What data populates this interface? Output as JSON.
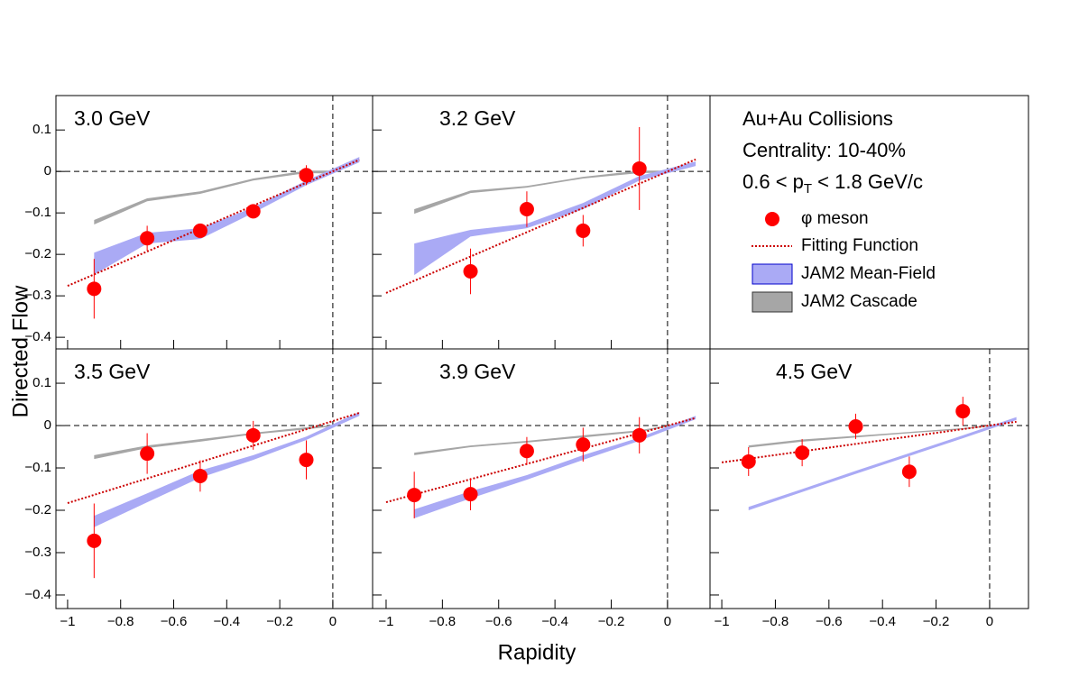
{
  "xlabel": "Rapidity",
  "ylabel": "Directed Flow",
  "annotations": [
    "Au+Au Collisions",
    "Centrality: 10-40%",
    {
      "pre": "0.6 < p",
      "sub": "T",
      "post": " < 1.8  GeV/c"
    }
  ],
  "chart_data": [
    {
      "type": "scatter",
      "title": "3.0 GeV",
      "xlim": [
        -1.044,
        0.15
      ],
      "ylim": [
        -0.428,
        0.183
      ],
      "xticks": [
        -1,
        -0.8,
        -0.6,
        -0.4,
        -0.2,
        0
      ],
      "yticks": [
        0.1,
        0,
        {
          "value": -0.1,
          "label": "−0.1"
        },
        {
          "value": -0.2,
          "label": "−0.2"
        },
        {
          "value": -0.3,
          "label": "−0.3"
        },
        {
          "value": -0.4,
          "label": "−0.4"
        }
      ],
      "series": [
        {
          "name": "φ meson",
          "color": "#ff0000",
          "x": [
            -0.9,
            -0.7,
            -0.5,
            -0.3,
            -0.1
          ],
          "values": [
            -0.283,
            -0.161,
            -0.143,
            -0.096,
            -0.009
          ],
          "errors": [
            0.072,
            0.03,
            0.01,
            0.01,
            0.024
          ]
        },
        {
          "name": "Fitting Function",
          "color": "#cc0000",
          "x": [
            -1,
            0.1
          ],
          "values": [
            -0.276,
            0.028
          ]
        },
        {
          "name": "JAM2 Mean-Field",
          "color": "#aaaaf5",
          "x": [
            -0.9,
            -0.7,
            -0.5,
            -0.3,
            -0.1,
            0.1
          ],
          "low": [
            -0.249,
            -0.174,
            -0.163,
            -0.1,
            -0.033,
            0.022
          ],
          "high": [
            -0.196,
            -0.148,
            -0.137,
            -0.087,
            -0.022,
            0.035
          ]
        },
        {
          "name": "JAM2 Cascade",
          "color": "#a6a6a6",
          "x": [
            -0.9,
            -0.7,
            -0.5,
            -0.3,
            -0.1,
            0
          ],
          "low": [
            -0.128,
            -0.072,
            -0.054,
            -0.022,
            -0.004,
            -0.005
          ],
          "high": [
            -0.117,
            -0.065,
            -0.048,
            -0.017,
            0.002,
            0.002
          ]
        }
      ]
    },
    {
      "type": "scatter",
      "title": "3.2 GeV",
      "xlim": [
        -1.048,
        0.151
      ],
      "ylim": [
        -0.428,
        0.183
      ],
      "xticks": [
        -1,
        -0.8,
        -0.6,
        -0.4,
        -0.2,
        0
      ],
      "yticks": [
        0.1,
        0,
        -0.1,
        -0.2,
        -0.3,
        -0.4
      ],
      "series": [
        {
          "color": "#ff0000",
          "x": [
            -0.7,
            -0.5,
            -0.3,
            -0.1
          ],
          "values": [
            -0.241,
            -0.091,
            -0.143,
            0.007
          ],
          "errors": [
            0.055,
            0.043,
            0.038,
            0.1
          ]
        },
        {
          "color": "#cc0000",
          "x": [
            -1,
            0.1
          ],
          "values": [
            -0.293,
            0.029
          ]
        },
        {
          "color": "#aaaaf5",
          "x": [
            -0.9,
            -0.7,
            -0.5,
            -0.3,
            -0.1,
            0.1
          ],
          "low": [
            -0.25,
            -0.157,
            -0.137,
            -0.091,
            -0.022,
            0.013
          ],
          "high": [
            -0.174,
            -0.141,
            -0.126,
            -0.076,
            -0.011,
            0.024
          ]
        },
        {
          "color": "#a6a6a6",
          "x": [
            -0.9,
            -0.7,
            -0.5,
            -0.3,
            -0.1,
            0
          ],
          "low": [
            -0.102,
            -0.052,
            -0.039,
            -0.017,
            -0.004,
            -0.003
          ],
          "high": [
            -0.091,
            -0.046,
            -0.035,
            -0.013,
            0.002,
            0.002
          ]
        }
      ]
    },
    {
      "type": "scatter",
      "title": "3.5 GeV",
      "xlim": [
        -1.044,
        0.15
      ],
      "ylim": [
        -0.432,
        0.181
      ],
      "xticks": [
        {
          "value": -1,
          "label": "−1"
        },
        {
          "value": -0.8,
          "label": "−0.8"
        },
        {
          "value": -0.6,
          "label": "−0.6"
        },
        {
          "value": -0.4,
          "label": "−0.4"
        },
        {
          "value": -0.2,
          "label": "−0.2"
        },
        0
      ],
      "yticks": [
        0.1,
        0,
        {
          "value": -0.1,
          "label": "−0.1"
        },
        {
          "value": -0.2,
          "label": "−0.2"
        },
        {
          "value": -0.3,
          "label": "−0.3"
        },
        {
          "value": -0.4,
          "label": "−0.4"
        }
      ],
      "series": [
        {
          "color": "#ff0000",
          "x": [
            -0.9,
            -0.7,
            -0.5,
            -0.3,
            -0.1
          ],
          "values": [
            -0.272,
            -0.066,
            -0.119,
            -0.023,
            -0.081
          ],
          "errors": [
            0.088,
            0.048,
            0.037,
            0.034,
            0.046
          ]
        },
        {
          "color": "#cc0000",
          "x": [
            -1,
            0.1
          ],
          "values": [
            -0.183,
            0.03
          ]
        },
        {
          "color": "#aaaaf5",
          "x": [
            -0.9,
            -0.7,
            -0.5,
            -0.3,
            -0.1,
            0.1
          ],
          "low": [
            -0.24,
            -0.181,
            -0.123,
            -0.081,
            -0.034,
            0.023
          ],
          "high": [
            -0.213,
            -0.16,
            -0.106,
            -0.07,
            -0.026,
            0.032
          ]
        },
        {
          "color": "#a6a6a6",
          "x": [
            -0.9,
            -0.7,
            -0.5,
            -0.3,
            -0.1,
            0
          ],
          "low": [
            -0.079,
            -0.053,
            -0.038,
            -0.021,
            -0.009,
            -0.002
          ],
          "high": [
            -0.07,
            -0.047,
            -0.032,
            -0.017,
            -0.004,
            0.001
          ]
        }
      ]
    },
    {
      "type": "scatter",
      "title": "3.9 GeV",
      "xlim": [
        -1.048,
        0.151
      ],
      "ylim": [
        -0.432,
        0.181
      ],
      "xticks": [
        {
          "value": -1,
          "label": "−1"
        },
        {
          "value": -0.8,
          "label": "−0.8"
        },
        {
          "value": -0.6,
          "label": "−0.6"
        },
        {
          "value": -0.4,
          "label": "−0.4"
        },
        {
          "value": -0.2,
          "label": "−0.2"
        },
        0
      ],
      "yticks": [
        0.1,
        0,
        -0.1,
        -0.2,
        -0.3,
        -0.4
      ],
      "series": [
        {
          "color": "#ff0000",
          "x": [
            -0.9,
            -0.7,
            -0.5,
            -0.3,
            -0.1
          ],
          "values": [
            -0.164,
            -0.162,
            -0.06,
            -0.045,
            -0.023
          ],
          "errors": [
            0.055,
            0.038,
            0.033,
            0.04,
            0.043
          ]
        },
        {
          "color": "#cc0000",
          "x": [
            -1,
            0.1
          ],
          "values": [
            -0.181,
            0.018
          ]
        },
        {
          "color": "#aaaaf5",
          "x": [
            -0.9,
            -0.7,
            -0.5,
            -0.3,
            -0.1,
            0.1
          ],
          "low": [
            -0.219,
            -0.172,
            -0.128,
            -0.081,
            -0.036,
            0.015
          ],
          "high": [
            -0.198,
            -0.155,
            -0.117,
            -0.07,
            -0.028,
            0.023
          ]
        },
        {
          "color": "#a6a6a6",
          "x": [
            -0.9,
            -0.7,
            -0.5,
            -0.3,
            -0.1,
            0
          ],
          "low": [
            -0.07,
            -0.051,
            -0.04,
            -0.028,
            -0.015,
            -0.003
          ],
          "high": [
            -0.064,
            -0.047,
            -0.036,
            -0.023,
            -0.011,
            0
          ]
        }
      ]
    },
    {
      "type": "scatter",
      "title": "4.5 GeV",
      "xlim": [
        -1.044,
        0.145
      ],
      "ylim": [
        -0.432,
        0.181
      ],
      "xticks": [
        {
          "value": -1,
          "label": "−1"
        },
        {
          "value": -0.8,
          "label": "−0.8"
        },
        {
          "value": -0.6,
          "label": "−0.6"
        },
        {
          "value": -0.4,
          "label": "−0.4"
        },
        {
          "value": -0.2,
          "label": "−0.2"
        },
        0
      ],
      "yticks": [
        0.1,
        0,
        -0.1,
        -0.2,
        -0.3,
        -0.4
      ],
      "series": [
        {
          "color": "#ff0000",
          "x": [
            -0.9,
            -0.7,
            -0.5,
            -0.3,
            -0.1
          ],
          "values": [
            -0.085,
            -0.064,
            -0.002,
            -0.109,
            0.034
          ],
          "errors": [
            0.034,
            0.032,
            0.03,
            0.036,
            0.034
          ]
        },
        {
          "color": "#cc0000",
          "x": [
            -1,
            0.1
          ],
          "values": [
            -0.087,
            0.009
          ]
        },
        {
          "color": "#aaaaf5",
          "x": [
            -0.9,
            -0.7,
            -0.5,
            -0.3,
            -0.1,
            0.1
          ],
          "low": [
            -0.2,
            -0.157,
            -0.114,
            -0.072,
            -0.03,
            0.013
          ],
          "high": [
            -0.192,
            -0.15,
            -0.107,
            -0.065,
            -0.023,
            0.02
          ]
        },
        {
          "color": "#a6a6a6",
          "x": [
            -0.9,
            -0.7,
            -0.5,
            -0.3,
            -0.1,
            0
          ],
          "low": [
            -0.052,
            -0.038,
            -0.028,
            -0.018,
            -0.009,
            -0.002
          ],
          "high": [
            -0.047,
            -0.033,
            -0.024,
            -0.015,
            -0.006,
            0.001
          ]
        }
      ]
    }
  ]
}
